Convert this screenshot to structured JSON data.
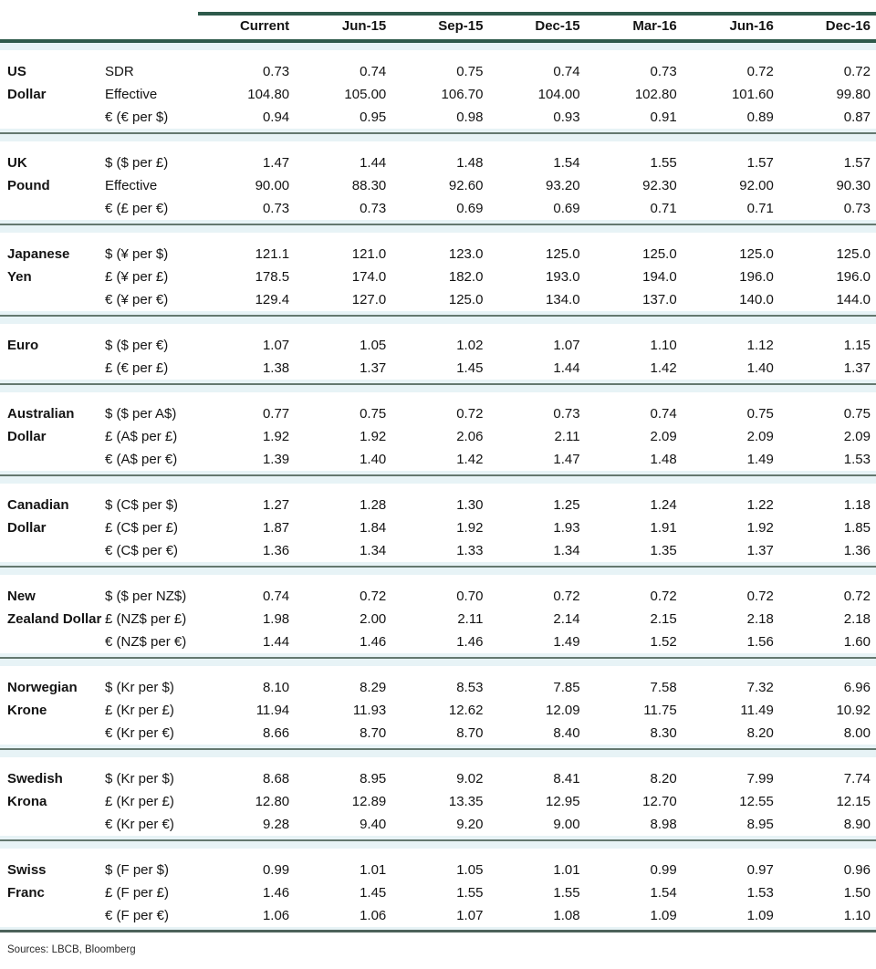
{
  "table": {
    "columns": [
      "Current",
      "Jun-15",
      "Sep-15",
      "Dec-15",
      "Mar-16",
      "Jun-16",
      "Dec-16"
    ],
    "groups": [
      {
        "currency": "US Dollar",
        "label_lines": [
          "US",
          "Dollar"
        ],
        "rows": [
          {
            "label": "SDR",
            "values": [
              "0.73",
              "0.74",
              "0.75",
              "0.74",
              "0.73",
              "0.72",
              "0.72"
            ]
          },
          {
            "label": "Effective",
            "values": [
              "104.80",
              "105.00",
              "106.70",
              "104.00",
              "102.80",
              "101.60",
              "99.80"
            ]
          },
          {
            "label": "€ (€ per $)",
            "values": [
              "0.94",
              "0.95",
              "0.98",
              "0.93",
              "0.91",
              "0.89",
              "0.87"
            ]
          }
        ]
      },
      {
        "currency": "UK Pound",
        "label_lines": [
          "UK",
          "Pound"
        ],
        "rows": [
          {
            "label": "$ ($ per £)",
            "values": [
              "1.47",
              "1.44",
              "1.48",
              "1.54",
              "1.55",
              "1.57",
              "1.57"
            ]
          },
          {
            "label": "Effective",
            "values": [
              "90.00",
              "88.30",
              "92.60",
              "93.20",
              "92.30",
              "92.00",
              "90.30"
            ]
          },
          {
            "label": "€ (£ per €)",
            "values": [
              "0.73",
              "0.73",
              "0.69",
              "0.69",
              "0.71",
              "0.71",
              "0.73"
            ]
          }
        ]
      },
      {
        "currency": "Japanese Yen",
        "label_lines": [
          "Japanese",
          "Yen"
        ],
        "rows": [
          {
            "label": "$ (¥ per $)",
            "values": [
              "121.1",
              "121.0",
              "123.0",
              "125.0",
              "125.0",
              "125.0",
              "125.0"
            ]
          },
          {
            "label": "£ (¥ per £)",
            "values": [
              "178.5",
              "174.0",
              "182.0",
              "193.0",
              "194.0",
              "196.0",
              "196.0"
            ]
          },
          {
            "label": "€ (¥ per €)",
            "values": [
              "129.4",
              "127.0",
              "125.0",
              "134.0",
              "137.0",
              "140.0",
              "144.0"
            ]
          }
        ]
      },
      {
        "currency": "Euro",
        "label_lines": [
          "Euro"
        ],
        "rows": [
          {
            "label": "$ ($ per €)",
            "values": [
              "1.07",
              "1.05",
              "1.02",
              "1.07",
              "1.10",
              "1.12",
              "1.15"
            ]
          },
          {
            "label": "£ (€ per £)",
            "values": [
              "1.38",
              "1.37",
              "1.45",
              "1.44",
              "1.42",
              "1.40",
              "1.37"
            ]
          }
        ]
      },
      {
        "currency": "Australian Dollar",
        "label_lines": [
          "Australian",
          "Dollar"
        ],
        "rows": [
          {
            "label": "$ ($ per A$)",
            "values": [
              "0.77",
              "0.75",
              "0.72",
              "0.73",
              "0.74",
              "0.75",
              "0.75"
            ]
          },
          {
            "label": "£ (A$ per £)",
            "values": [
              "1.92",
              "1.92",
              "2.06",
              "2.11",
              "2.09",
              "2.09",
              "2.09"
            ]
          },
          {
            "label": "€ (A$ per €)",
            "values": [
              "1.39",
              "1.40",
              "1.42",
              "1.47",
              "1.48",
              "1.49",
              "1.53"
            ]
          }
        ]
      },
      {
        "currency": "Canadian Dollar",
        "label_lines": [
          "Canadian",
          "Dollar"
        ],
        "rows": [
          {
            "label": "$ (C$ per $)",
            "values": [
              "1.27",
              "1.28",
              "1.30",
              "1.25",
              "1.24",
              "1.22",
              "1.18"
            ]
          },
          {
            "label": "£ (C$ per £)",
            "values": [
              "1.87",
              "1.84",
              "1.92",
              "1.93",
              "1.91",
              "1.92",
              "1.85"
            ]
          },
          {
            "label": "€ (C$ per €)",
            "values": [
              "1.36",
              "1.34",
              "1.33",
              "1.34",
              "1.35",
              "1.37",
              "1.36"
            ]
          }
        ]
      },
      {
        "currency": "New Zealand Dollar",
        "label_lines": [
          "New",
          "Zealand Dollar"
        ],
        "rows": [
          {
            "label": "$ ($ per NZ$)",
            "values": [
              "0.74",
              "0.72",
              "0.70",
              "0.72",
              "0.72",
              "0.72",
              "0.72"
            ]
          },
          {
            "label": "£ (NZ$ per £)",
            "values": [
              "1.98",
              "2.00",
              "2.11",
              "2.14",
              "2.15",
              "2.18",
              "2.18"
            ]
          },
          {
            "label": "€ (NZ$ per €)",
            "values": [
              "1.44",
              "1.46",
              "1.46",
              "1.49",
              "1.52",
              "1.56",
              "1.60"
            ]
          }
        ]
      },
      {
        "currency": "Norwegian Krone",
        "label_lines": [
          "Norwegian",
          "Krone"
        ],
        "rows": [
          {
            "label": "$ (Kr per $)",
            "values": [
              "8.10",
              "8.29",
              "8.53",
              "7.85",
              "7.58",
              "7.32",
              "6.96"
            ]
          },
          {
            "label": "£ (Kr per £)",
            "values": [
              "11.94",
              "11.93",
              "12.62",
              "12.09",
              "11.75",
              "11.49",
              "10.92"
            ]
          },
          {
            "label": "€ (Kr per €)",
            "values": [
              "8.66",
              "8.70",
              "8.70",
              "8.40",
              "8.30",
              "8.20",
              "8.00"
            ]
          }
        ]
      },
      {
        "currency": "Swedish Krona",
        "label_lines": [
          "Swedish",
          "Krona"
        ],
        "rows": [
          {
            "label": "$ (Kr per $)",
            "values": [
              "8.68",
              "8.95",
              "9.02",
              "8.41",
              "8.20",
              "7.99",
              "7.74"
            ]
          },
          {
            "label": "£ (Kr per £)",
            "values": [
              "12.80",
              "12.89",
              "13.35",
              "12.95",
              "12.70",
              "12.55",
              "12.15"
            ]
          },
          {
            "label": "€ (Kr per €)",
            "values": [
              "9.28",
              "9.40",
              "9.20",
              "9.00",
              "8.98",
              "8.95",
              "8.90"
            ]
          }
        ]
      },
      {
        "currency": "Swiss Franc",
        "label_lines": [
          "Swiss",
          "Franc"
        ],
        "rows": [
          {
            "label": "$ (F per $)",
            "values": [
              "0.99",
              "1.01",
              "1.05",
              "1.01",
              "0.99",
              "0.97",
              "0.96"
            ]
          },
          {
            "label": "£ (F per £)",
            "values": [
              "1.46",
              "1.45",
              "1.55",
              "1.55",
              "1.54",
              "1.53",
              "1.50"
            ]
          },
          {
            "label": "€ (F per €)",
            "values": [
              "1.06",
              "1.06",
              "1.07",
              "1.08",
              "1.09",
              "1.09",
              "1.10"
            ]
          }
        ]
      }
    ]
  },
  "footer": {
    "sources": "Sources: LBCB, Bloomberg"
  },
  "colors": {
    "rule_dark_green": "#2e5a4b",
    "separator_gray_green": "#64786f",
    "band_light_cyan": "#e7f3f6",
    "text": "#141414"
  }
}
